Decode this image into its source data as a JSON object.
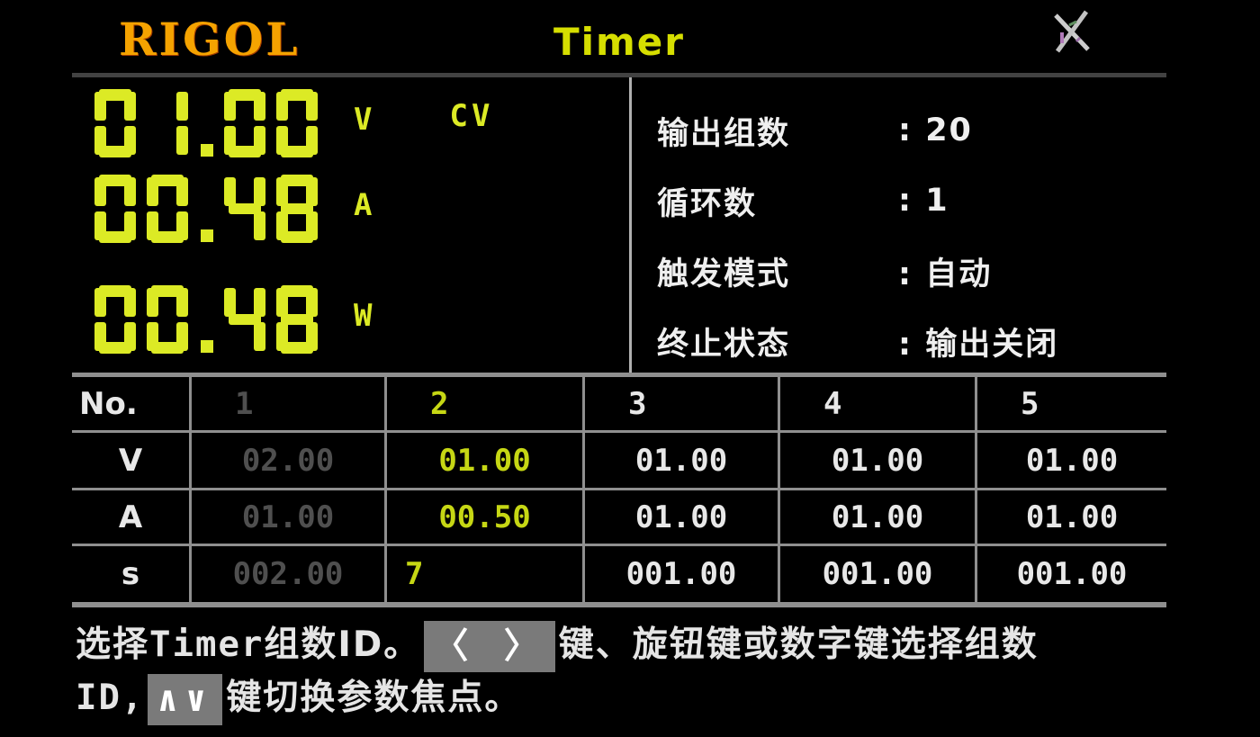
{
  "header": {
    "logo": "RIGOL",
    "title": "Timer"
  },
  "meter": {
    "voltage": {
      "value": "01.00",
      "unit": "V"
    },
    "mode": "CV",
    "current": {
      "value": "00.48",
      "unit": "A"
    },
    "power": {
      "value": "00.48",
      "unit": "W"
    }
  },
  "params": [
    {
      "label": "输出组数",
      "value": "20"
    },
    {
      "label": "循环数",
      "value": "1"
    },
    {
      "label": "触发模式",
      "value": "自动"
    },
    {
      "label": "终止状态",
      "value": "输出关闭"
    }
  ],
  "table": {
    "corner": "No.",
    "columns": [
      "1",
      "2",
      "3",
      "4",
      "5"
    ],
    "rows": [
      {
        "label": "V",
        "values": [
          "02.00",
          "01.00",
          "01.00",
          "01.00",
          "01.00"
        ]
      },
      {
        "label": "A",
        "values": [
          "01.00",
          "00.50",
          "01.00",
          "01.00",
          "01.00"
        ]
      },
      {
        "label": "s",
        "values": [
          "002.00",
          "7",
          "001.00",
          "001.00",
          "001.00"
        ]
      }
    ],
    "dimmed_column_index": 0,
    "selected_column_index": 1,
    "selected_group": "2"
  },
  "help": {
    "line1_part1": "选择",
    "line1_timer": "Timer",
    "line1_part2": "组数ID。",
    "line1_keys": "〈 〉",
    "line1_part3": "键、旋钮键或数字键选择组数",
    "line2_part1": "ID,",
    "line2_keys": "∧∨",
    "line2_part2": "键切换参数焦点。"
  },
  "icons": {
    "keylock": "keylock-disabled-icon"
  },
  "colors": {
    "background": "#000000",
    "logo_orange": "#f5a300",
    "title_yellow": "#d6de00",
    "sevenseg_yellow": "#dcea25",
    "selected_yellow": "#c6d714",
    "text_white": "#efefef",
    "dimmed_gray": "#4f4f4f",
    "table_border_gray": "#8f8f8f",
    "key_badge_gray": "#7a7a7a"
  }
}
